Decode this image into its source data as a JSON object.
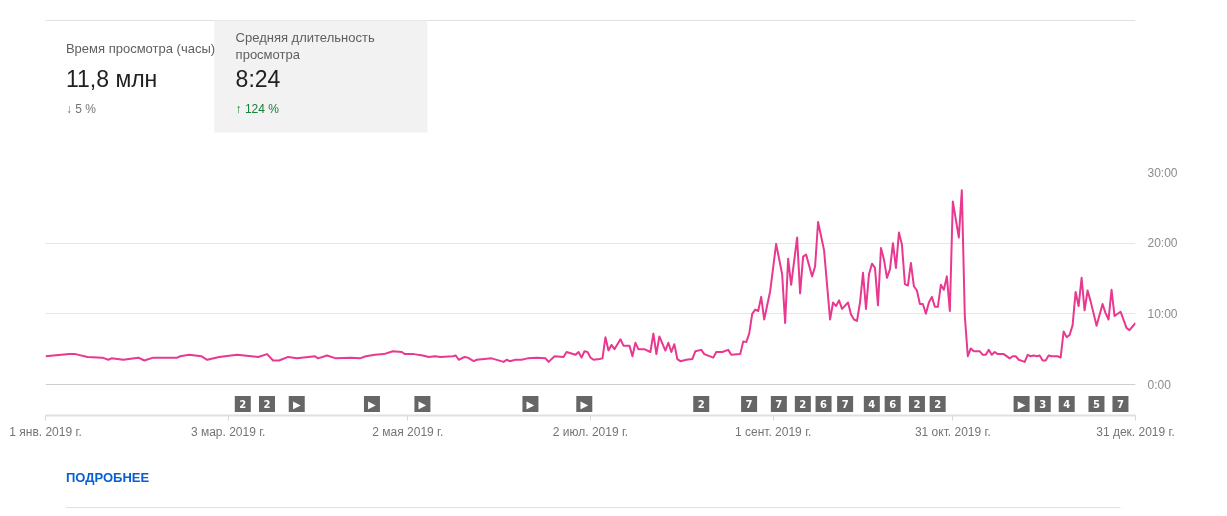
{
  "chart_data": {
    "type": "line",
    "x": [
      "2019-01-01",
      "2019-01-09",
      "2019-01-11",
      "2019-01-15",
      "2019-01-20",
      "2019-01-22",
      "2019-01-23",
      "2019-01-27",
      "2019-02-01",
      "2019-02-03",
      "2019-02-06",
      "2019-02-14",
      "2019-02-15",
      "2019-02-18",
      "2019-02-22",
      "2019-02-24",
      "2019-02-28",
      "2019-03-06",
      "2019-03-13",
      "2019-03-16",
      "2019-03-18",
      "2019-03-20",
      "2019-03-23",
      "2019-03-26",
      "2019-04-01",
      "2019-04-02",
      "2019-04-05",
      "2019-04-08",
      "2019-04-13",
      "2019-04-16",
      "2019-04-18",
      "2019-04-21",
      "2019-04-24",
      "2019-04-27",
      "2019-04-30",
      "2019-05-01",
      "2019-05-04",
      "2019-05-07",
      "2019-05-09",
      "2019-05-11",
      "2019-05-13",
      "2019-05-17",
      "2019-05-18",
      "2019-05-19",
      "2019-05-21",
      "2019-05-22",
      "2019-05-24",
      "2019-05-25",
      "2019-05-30",
      "2019-06-03",
      "2019-06-04",
      "2019-06-05",
      "2019-06-07",
      "2019-06-09",
      "2019-06-11",
      "2019-06-14",
      "2019-06-17",
      "2019-06-18",
      "2019-06-20",
      "2019-06-23",
      "2019-06-24",
      "2019-06-27",
      "2019-06-28",
      "2019-06-29",
      "2019-06-30",
      "2019-07-01",
      "2019-07-02",
      "2019-07-03",
      "2019-07-05",
      "2019-07-06",
      "2019-07-07",
      "2019-07-08",
      "2019-07-09",
      "2019-07-10",
      "2019-07-12",
      "2019-07-13",
      "2019-07-15",
      "2019-07-16",
      "2019-07-17",
      "2019-07-18",
      "2019-07-20",
      "2019-07-22",
      "2019-07-23",
      "2019-07-24",
      "2019-07-25",
      "2019-07-27",
      "2019-07-28",
      "2019-07-29",
      "2019-07-30",
      "2019-07-31",
      "2019-08-01",
      "2019-08-03",
      "2019-08-05",
      "2019-08-06",
      "2019-08-08",
      "2019-08-09",
      "2019-08-12",
      "2019-08-13",
      "2019-08-15",
      "2019-08-17",
      "2019-08-18",
      "2019-08-21",
      "2019-08-22",
      "2019-08-23",
      "2019-08-24",
      "2019-08-25",
      "2019-08-26",
      "2019-08-27",
      "2019-08-28",
      "2019-08-29",
      "2019-08-31",
      "2019-09-02",
      "2019-09-04",
      "2019-09-05",
      "2019-09-06",
      "2019-09-07",
      "2019-09-09",
      "2019-09-10",
      "2019-09-11",
      "2019-09-12",
      "2019-09-14",
      "2019-09-15",
      "2019-09-16",
      "2019-09-18",
      "2019-09-20",
      "2019-09-21",
      "2019-09-22",
      "2019-09-23",
      "2019-09-24",
      "2019-09-26",
      "2019-09-27",
      "2019-09-28",
      "2019-09-29",
      "2019-09-30",
      "2019-10-01",
      "2019-10-02",
      "2019-10-03",
      "2019-10-04",
      "2019-10-05",
      "2019-10-06",
      "2019-10-07",
      "2019-10-08",
      "2019-10-09",
      "2019-10-10",
      "2019-10-11",
      "2019-10-12",
      "2019-10-13",
      "2019-10-14",
      "2019-10-15",
      "2019-10-16",
      "2019-10-17",
      "2019-10-18",
      "2019-10-19",
      "2019-10-20",
      "2019-10-21",
      "2019-10-22",
      "2019-10-23",
      "2019-10-24",
      "2019-10-25",
      "2019-10-26",
      "2019-10-27",
      "2019-10-28",
      "2019-10-29",
      "2019-10-30",
      "2019-10-31",
      "2019-11-02",
      "2019-11-03",
      "2019-11-04",
      "2019-11-05",
      "2019-11-06",
      "2019-11-07",
      "2019-11-09",
      "2019-11-10",
      "2019-11-11",
      "2019-11-12",
      "2019-11-13",
      "2019-11-14",
      "2019-11-15",
      "2019-11-17",
      "2019-11-19",
      "2019-11-20",
      "2019-11-21",
      "2019-11-22",
      "2019-11-24",
      "2019-11-25",
      "2019-11-26",
      "2019-11-27",
      "2019-11-28",
      "2019-11-29",
      "2019-11-30",
      "2019-12-01",
      "2019-12-02",
      "2019-12-03",
      "2019-12-05",
      "2019-12-06",
      "2019-12-07",
      "2019-12-08",
      "2019-12-09",
      "2019-12-10",
      "2019-12-11",
      "2019-12-12",
      "2019-12-13",
      "2019-12-14",
      "2019-12-15",
      "2019-12-16",
      "2019-12-18",
      "2019-12-20",
      "2019-12-21",
      "2019-12-22",
      "2019-12-23",
      "2019-12-24",
      "2019-12-26",
      "2019-12-28",
      "2019-12-29",
      "2019-12-31"
    ],
    "series": [
      {
        "color": "#e8388f",
        "values": [
          4.0,
          4.3,
          4.3,
          3.9,
          3.8,
          3.5,
          3.7,
          3.5,
          3.8,
          3.4,
          3.8,
          3.8,
          4.0,
          4.2,
          4.0,
          3.5,
          3.9,
          4.2,
          3.9,
          4.3,
          3.4,
          3.4,
          3.9,
          3.7,
          4.0,
          3.7,
          4.1,
          3.7,
          3.8,
          3.7,
          4.0,
          4.2,
          4.3,
          4.7,
          4.6,
          4.3,
          4.3,
          4.1,
          3.9,
          4.0,
          3.9,
          4.0,
          4.1,
          3.5,
          3.9,
          3.8,
          3.3,
          3.5,
          3.7,
          3.2,
          3.5,
          3.3,
          3.5,
          3.5,
          3.7,
          3.8,
          3.7,
          3.2,
          4.0,
          3.9,
          4.6,
          4.2,
          4.6,
          3.8,
          4.7,
          4.6,
          3.8,
          3.5,
          3.6,
          3.7,
          6.7,
          4.8,
          5.6,
          5.0,
          6.4,
          5.5,
          5.5,
          4.0,
          5.9,
          5.0,
          5.0,
          4.6,
          7.2,
          4.3,
          6.8,
          4.8,
          5.9,
          4.6,
          5.7,
          3.6,
          3.3,
          3.5,
          3.6,
          4.7,
          4.9,
          4.3,
          3.8,
          4.6,
          4.6,
          4.9,
          4.2,
          4.3,
          6.1,
          6.0,
          7.2,
          10.0,
          10.6,
          10.4,
          12.4,
          9.2,
          13.2,
          19.9,
          15.6,
          8.7,
          17.8,
          14.1,
          20.8,
          12.9,
          18.1,
          18.4,
          15.3,
          16.7,
          23.0,
          19.0,
          9.2,
          11.6,
          11.1,
          11.9,
          10.7,
          11.6,
          9.9,
          9.2,
          9.0,
          11.6,
          15.8,
          10.7,
          15.6,
          17.1,
          16.5,
          11.2,
          19.3,
          17.7,
          15.1,
          16.3,
          20.0,
          16.5,
          21.5,
          19.8,
          14.2,
          14.0,
          17.2,
          13.9,
          13.3,
          11.4,
          11.4,
          10.0,
          11.6,
          12.4,
          11.0,
          11.0,
          14.1,
          13.4,
          15.3,
          10.4,
          25.9,
          20.8,
          27.5,
          9.7,
          4.0,
          5.1,
          4.7,
          4.7,
          4.2,
          4.2,
          4.9,
          4.2,
          4.6,
          4.3,
          4.3,
          3.7,
          4.0,
          4.0,
          3.5,
          3.2,
          4.2,
          4.0,
          4.1,
          4.0,
          4.1,
          3.4,
          3.4,
          4.1,
          4.0,
          4.0,
          3.8,
          7.5,
          6.7,
          7.0,
          8.4,
          13.1,
          11.1,
          15.1,
          10.5,
          13.3,
          11.8,
          8.3,
          11.4,
          10.1,
          9.2,
          13.4,
          9.7,
          10.3,
          8.0,
          7.7,
          8.7
        ]
      }
    ],
    "xlim": [
      "2019-01-01",
      "2019-12-31"
    ],
    "xticks": [
      {
        "value": "2019-01-01",
        "label": "1 янв. 2019 г."
      },
      {
        "value": "2019-03-03",
        "label": "3 мар. 2019 г."
      },
      {
        "value": "2019-05-02",
        "label": "2 мая 2019 г."
      },
      {
        "value": "2019-07-02",
        "label": "2 июл. 2019 г."
      },
      {
        "value": "2019-09-01",
        "label": "1 сент. 2019 г."
      },
      {
        "value": "2019-10-31",
        "label": "31 окт. 2019 г."
      },
      {
        "value": "2019-12-31",
        "label": "31 дек. 2019 г."
      }
    ],
    "ylim": [
      0,
      30
    ],
    "yticks": [
      {
        "value": 0,
        "label": "0:00"
      },
      {
        "value": 10,
        "label": "10:00"
      },
      {
        "value": 20,
        "label": "20:00"
      },
      {
        "value": 30,
        "label": "30:00"
      }
    ],
    "grid": "y",
    "annotations": [
      "Время просмотра (часы)",
      "11,8 млн",
      "↓ 5 %",
      "Средняя длительность просмотра",
      "8:24",
      "↑ 124 %",
      "2",
      "2",
      "▶",
      "▶",
      "▶",
      "▶",
      "▶",
      "2",
      "7",
      "7",
      "2",
      "6",
      "7",
      "4",
      "6",
      "2",
      "2",
      "▶",
      "3",
      "4",
      "5",
      "7",
      "ПОДРОБНЕЕ"
    ]
  }
}
